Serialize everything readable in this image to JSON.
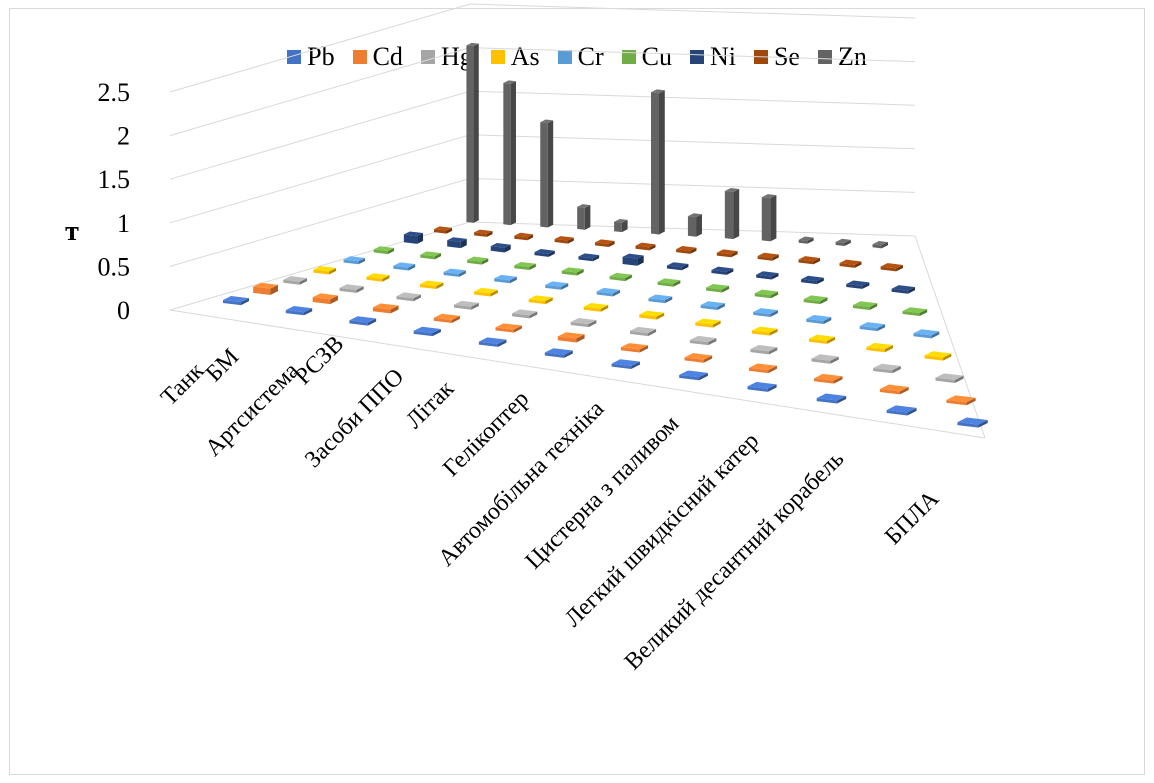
{
  "chart_data": {
    "type": "bar",
    "subtype": "3d-column",
    "ylabel": "т",
    "xlabel": "",
    "ylim": [
      0,
      2.5
    ],
    "y_ticks": [
      "0",
      "0.5",
      "1",
      "1.5",
      "2",
      "2.5"
    ],
    "grid": true,
    "legend_position": "top",
    "categories": [
      "Танк",
      "БМ",
      "Артсистема",
      "РСЗВ",
      "Засоби ППО",
      "Літак",
      "Гелікоптер",
      "Автомобільна техніка",
      "Цистерна з паливом",
      "Легкий швидкісний катер",
      "Великий десантний корабель",
      "БПЛА"
    ],
    "series": [
      {
        "name": "Pb",
        "color": "#4472C4",
        "values": [
          0.01,
          0.01,
          0.01,
          0.01,
          0.01,
          0.01,
          0.01,
          0.01,
          0.01,
          0.01,
          0.01,
          0.01
        ]
      },
      {
        "name": "Cd",
        "color": "#ED7D31",
        "values": [
          0.08,
          0.06,
          0.05,
          0.02,
          0.02,
          0.05,
          0.02,
          0.02,
          0.02,
          0.02,
          0.02,
          0.02
        ]
      },
      {
        "name": "Hg",
        "color": "#A5A5A5",
        "values": [
          0.01,
          0.01,
          0.01,
          0.01,
          0.01,
          0.01,
          0.01,
          0.01,
          0.01,
          0.01,
          0.01,
          0.01
        ]
      },
      {
        "name": "As",
        "color": "#FFC000",
        "values": [
          0.01,
          0.01,
          0.01,
          0.01,
          0.01,
          0.01,
          0.01,
          0.01,
          0.01,
          0.01,
          0.01,
          0.01
        ]
      },
      {
        "name": "Cr",
        "color": "#5B9BD5",
        "values": [
          0.01,
          0.01,
          0.01,
          0.01,
          0.01,
          0.01,
          0.01,
          0.01,
          0.01,
          0.01,
          0.01,
          0.01
        ]
      },
      {
        "name": "Cu",
        "color": "#70AD47",
        "values": [
          0.01,
          0.01,
          0.01,
          0.01,
          0.01,
          0.01,
          0.01,
          0.01,
          0.01,
          0.01,
          0.01,
          0.01
        ]
      },
      {
        "name": "Ni",
        "color": "#264478",
        "values": [
          0.1,
          0.08,
          0.06,
          0.02,
          0.02,
          0.09,
          0.03,
          0.03,
          0.02,
          0.02,
          0.02,
          0.02
        ]
      },
      {
        "name": "Se",
        "color": "#9E480E",
        "values": [
          0.01,
          0.01,
          0.01,
          0.01,
          0.01,
          0.01,
          0.01,
          0.01,
          0.01,
          0.01,
          0.01,
          0.01
        ]
      },
      {
        "name": "Zn",
        "color": "#636363",
        "values": [
          2.25,
          1.8,
          1.33,
          0.28,
          0.12,
          1.8,
          0.25,
          0.6,
          0.55,
          0.03,
          0.03,
          0.03
        ]
      }
    ]
  }
}
